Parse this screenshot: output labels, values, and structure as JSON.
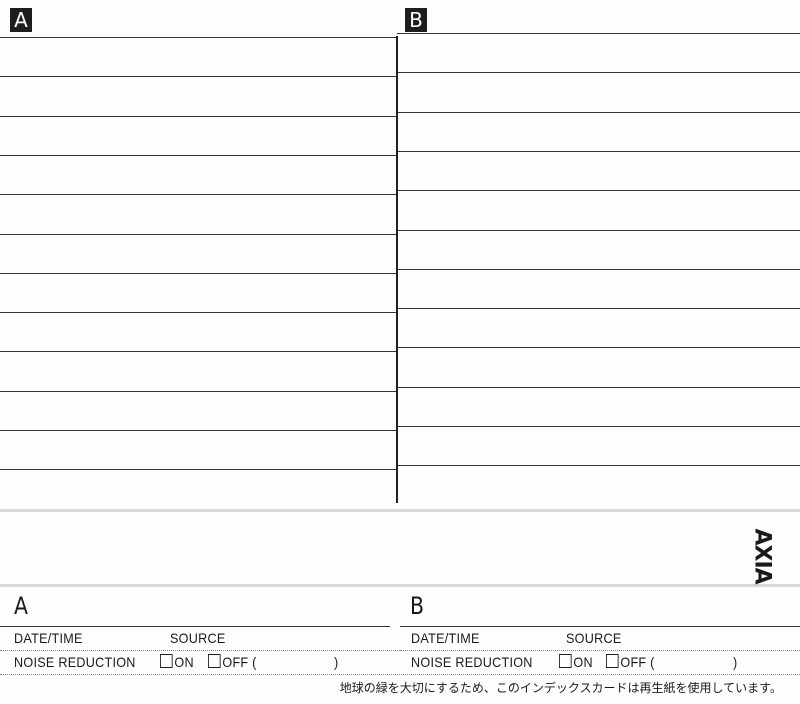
{
  "panels": {
    "a_label": "A",
    "b_label": "B"
  },
  "logo": "AXIA",
  "side_a": {
    "label": "A",
    "date_time": "DATE/TIME",
    "source": "SOURCE",
    "noise_reduction": "NOISE REDUCTION",
    "on": "ON",
    "off": "OFF (",
    "close": ")"
  },
  "side_b": {
    "label": "B",
    "date_time": "DATE/TIME",
    "source": "SOURCE",
    "noise_reduction": "NOISE REDUCTION",
    "on": "ON",
    "off": "OFF (",
    "close": ")"
  },
  "note": "地球の緑を大切にするため、このインデックスカードは再生紙を使用しています。"
}
